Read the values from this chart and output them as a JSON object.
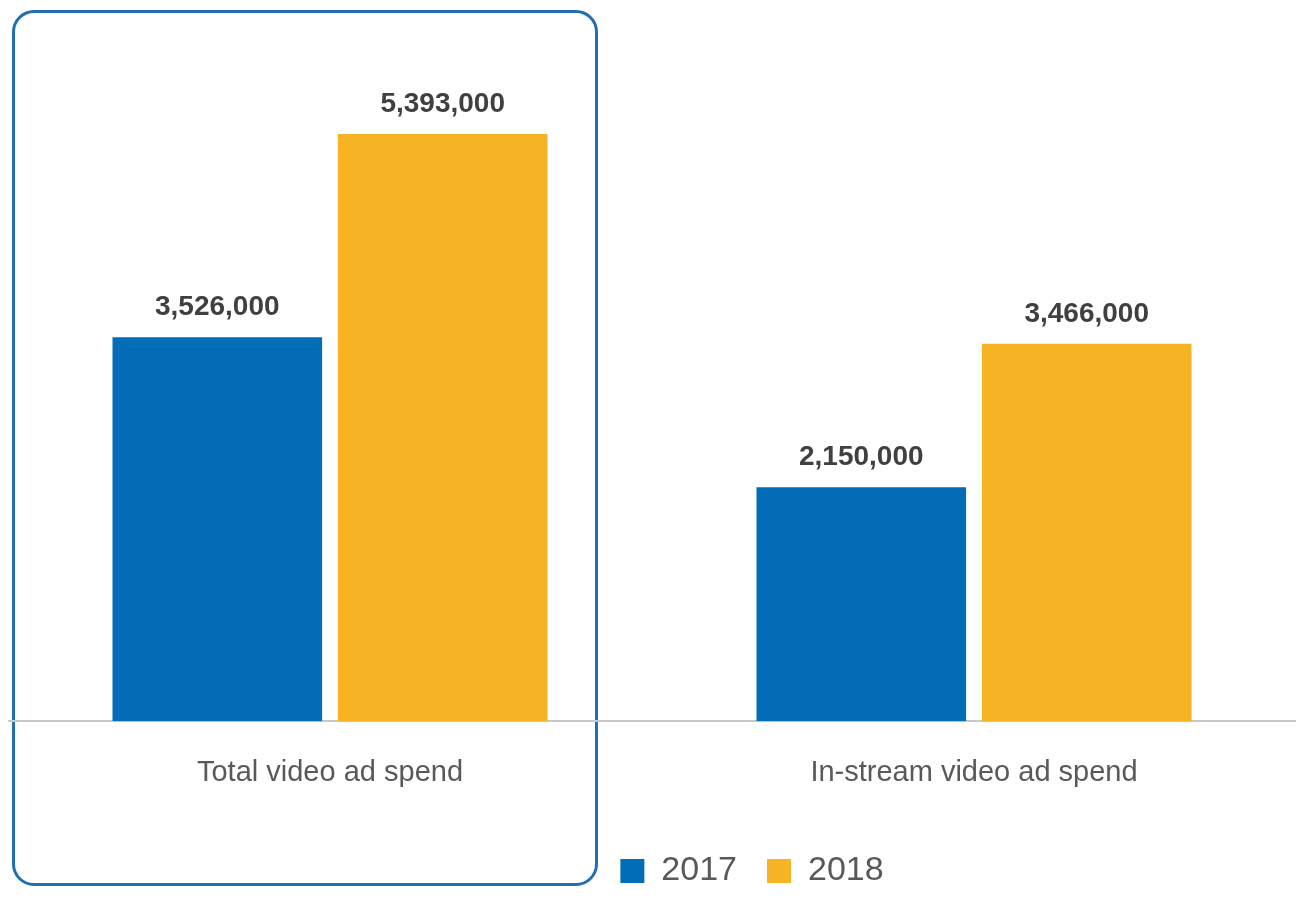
{
  "chart_data": {
    "type": "bar",
    "categories": [
      "Total video ad spend",
      "In-stream video ad spend"
    ],
    "series": [
      {
        "name": "2017",
        "color": "#036eb7",
        "values": [
          3526000,
          2150000
        ],
        "value_labels": [
          "3,526,000",
          "2,150,000"
        ]
      },
      {
        "name": "2018",
        "color": "#f6b324",
        "values": [
          5393000,
          3466000
        ],
        "value_labels": [
          "5,393,000",
          "3,466,000"
        ]
      }
    ],
    "legend": "bottom",
    "grid": false,
    "tick_labels": "x"
  }
}
